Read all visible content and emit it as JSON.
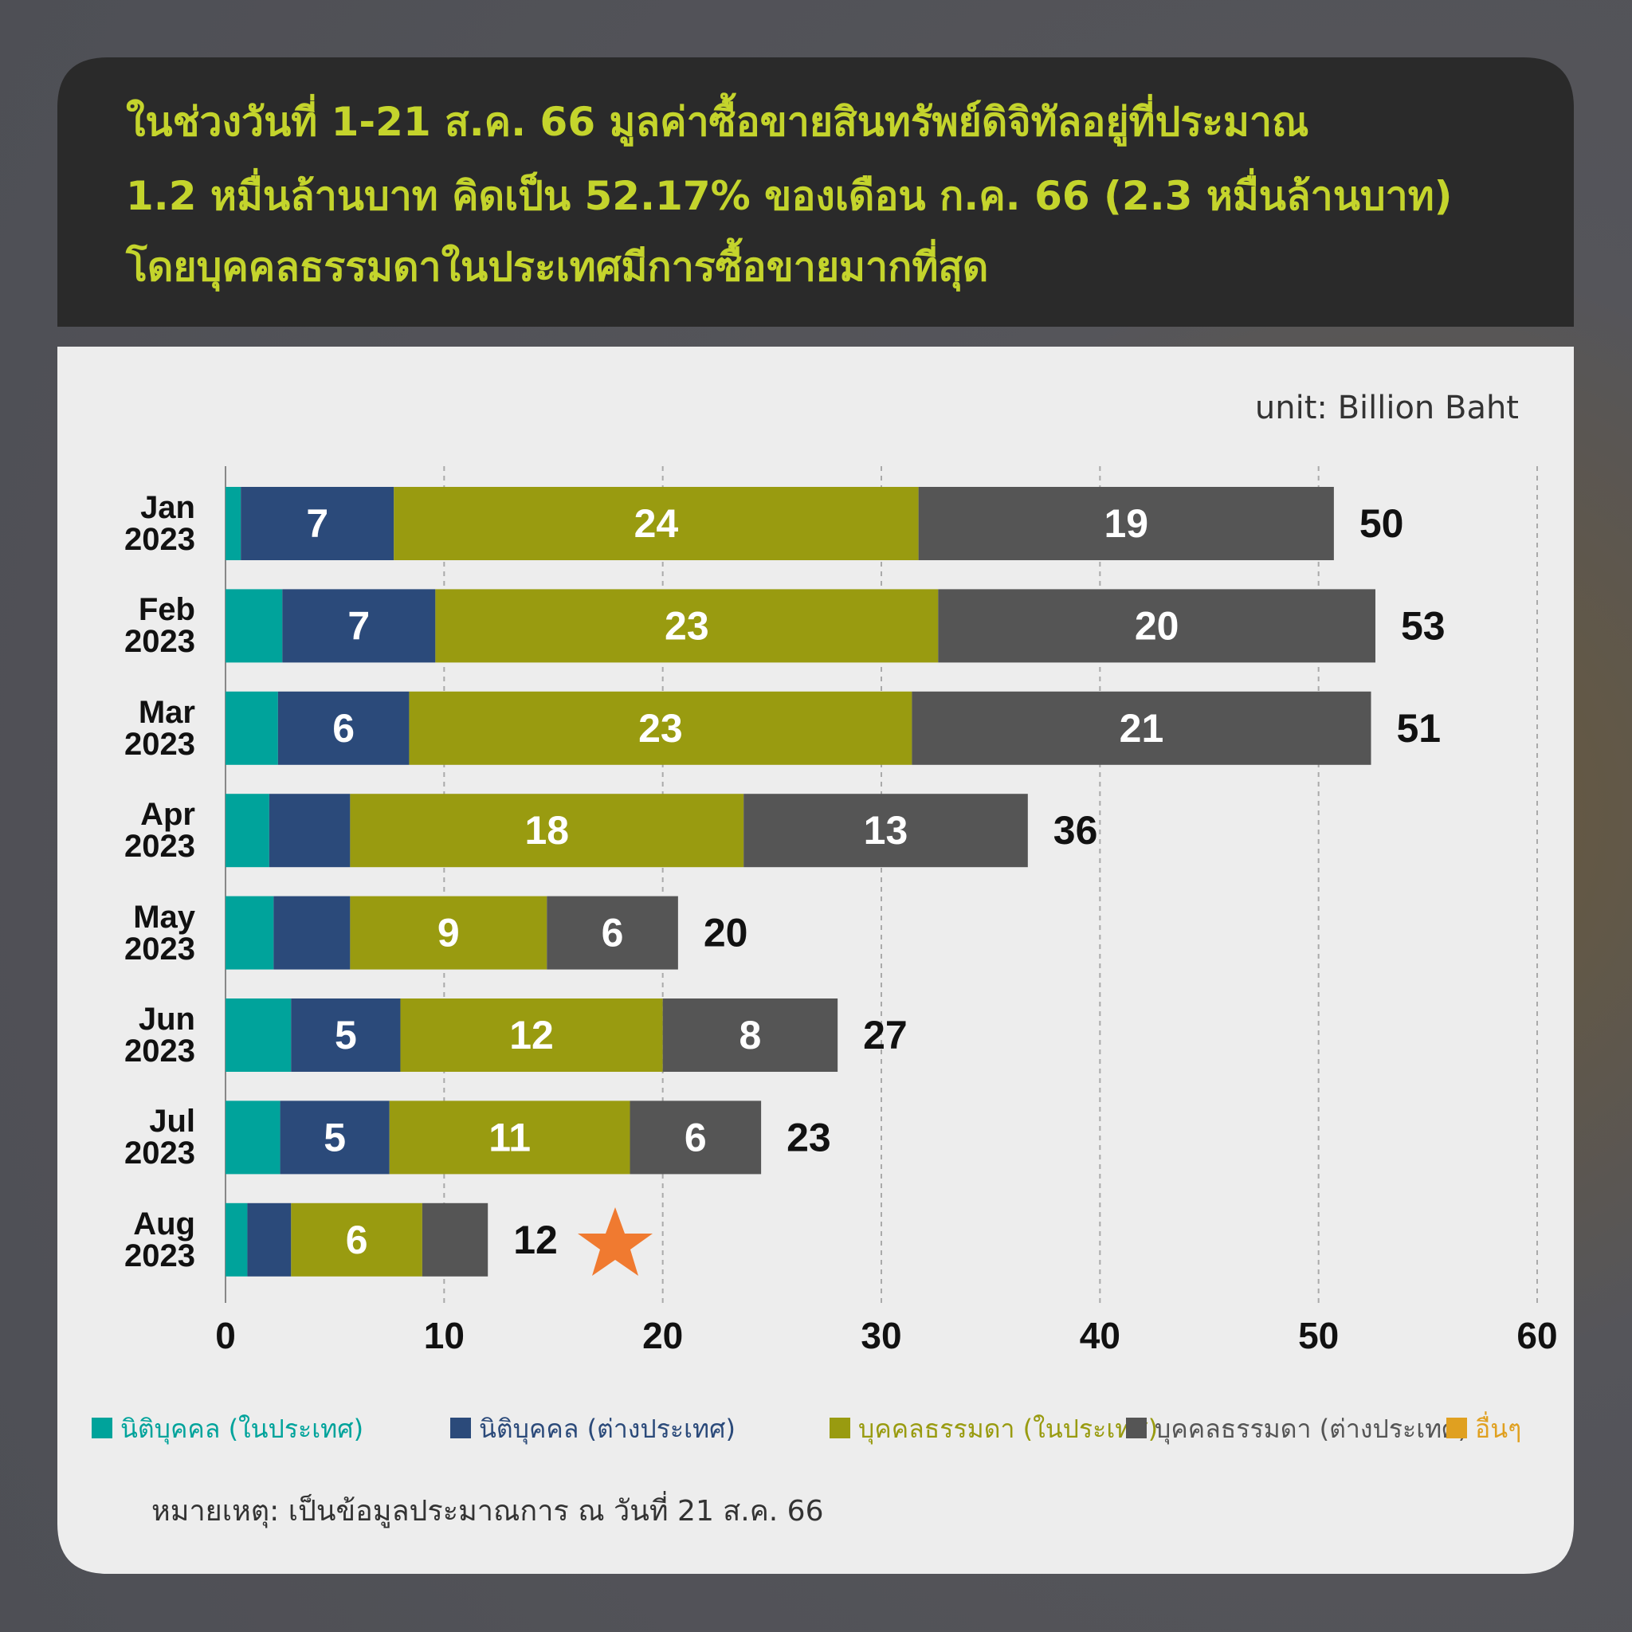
{
  "chart_data": {
    "type": "stacked-bar",
    "title": [
      "ในช่วงวันที่ 1-21 ส.ค. 66 มูลค่าซื้อขายสินทรัพย์ดิจิทัลอยู่ที่ประมาณ",
      "1.2 หมื่นล้านบาท คิดเป็น 52.17% ของเดือน ก.ค. 66 (2.3 หมื่นล้านบาท)",
      "โดยบุคคลธรรมดาในประเทศมีการซื้อขายมากที่สุด"
    ],
    "unit": "unit: Billion Baht",
    "note": "หมายเหตุ: เป็นข้อมูลประมาณการ ณ วันที่ 21 ส.ค. 66",
    "categories": [
      "Jan 2023",
      "Feb 2023",
      "Mar 2023",
      "Apr 2023",
      "May 2023",
      "Jun 2023",
      "Jul 2023",
      "Aug 2023"
    ],
    "series": [
      {
        "name": "นิติบุคคล (ในประเทศ)",
        "color": "#00a39b",
        "values": [
          0.7,
          2.6,
          2.4,
          2,
          2.2,
          3,
          2.5,
          1
        ]
      },
      {
        "name": "นิติบุคคล (ต่างประเทศ)",
        "color": "#2b4a7a",
        "values": [
          7,
          7,
          6,
          3.7,
          3.5,
          5,
          5,
          2
        ],
        "value_labels": [
          7,
          7,
          6,
          null,
          null,
          5,
          5,
          null
        ]
      },
      {
        "name": "บุคคลธรรมดา (ในประเทศ)",
        "color": "#999b10",
        "values": [
          24,
          23,
          23,
          18,
          9,
          12,
          11,
          6
        ],
        "value_labels": [
          24,
          23,
          23,
          18,
          9,
          12,
          11,
          6
        ]
      },
      {
        "name": "บุคคลธรรมดา (ต่างประเทศ)",
        "color": "#555555",
        "values": [
          19,
          20,
          21,
          13,
          6,
          8,
          6,
          3
        ],
        "value_labels": [
          19,
          20,
          21,
          13,
          6,
          8,
          6,
          null
        ]
      },
      {
        "name": "อื่นๆ",
        "color": "#e0a020",
        "values": [
          null,
          null,
          null,
          null,
          null,
          null,
          null,
          null
        ]
      }
    ],
    "totals": [
      50,
      53,
      51,
      36,
      20,
      27,
      23,
      12
    ],
    "xlim": [
      0,
      60
    ],
    "xticks": [
      0,
      10,
      20,
      30,
      40,
      50,
      60
    ],
    "grid": true,
    "legend": "bottom"
  }
}
